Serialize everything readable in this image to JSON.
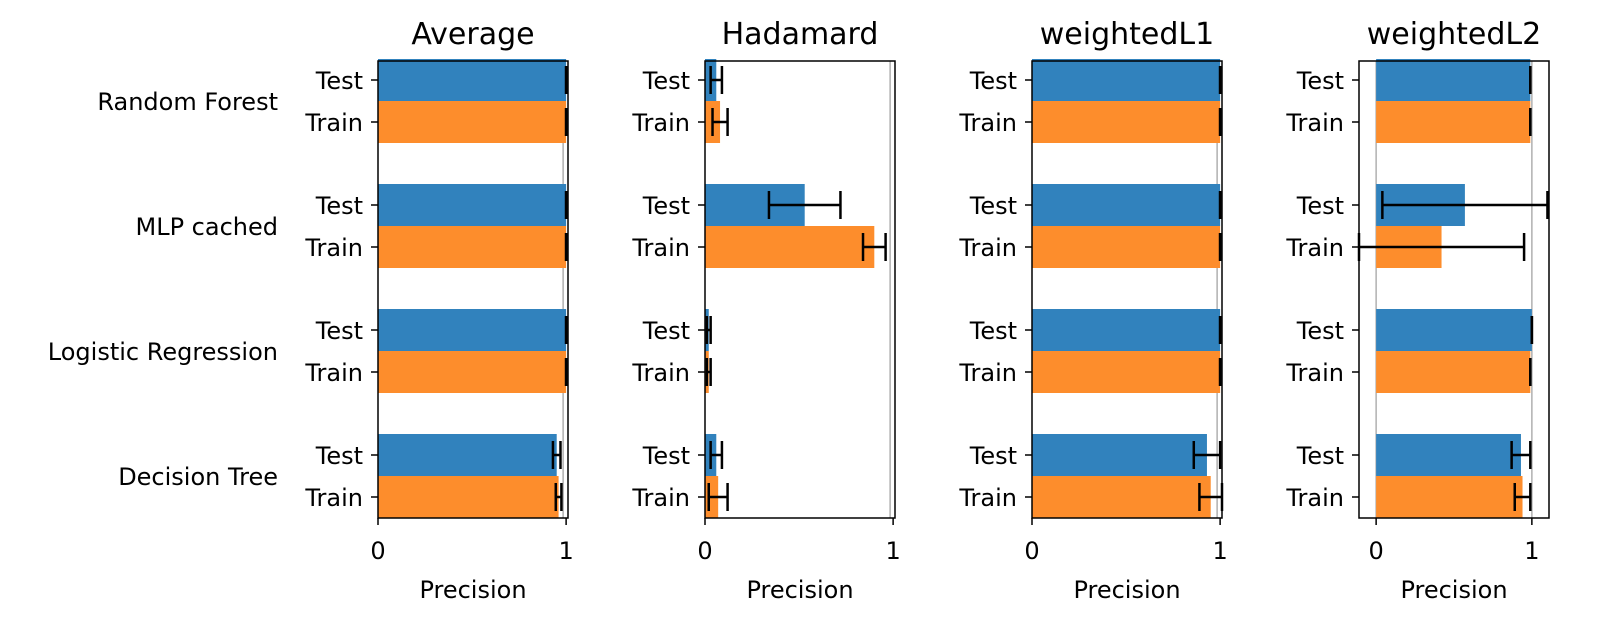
{
  "figure": {
    "row_labels": [
      "Random Forest",
      "MLP cached",
      "Logistic Regression",
      "Decision Tree"
    ],
    "xlabel": "Precision"
  },
  "colors": {
    "test": "#3182bd",
    "train": "#fd8d2c",
    "errorbar": "#000000",
    "refline": "#b0b0b0"
  },
  "chart_data": [
    {
      "type": "bar",
      "orientation": "horizontal",
      "title": "Average",
      "xlabel": "Precision",
      "xlim": [
        0,
        1.01
      ],
      "xticks": [
        "0",
        "1"
      ],
      "categories": [
        "Random Forest",
        "MLP cached",
        "Logistic Regression",
        "Decision Tree"
      ],
      "bar_labels": [
        "Test",
        "Train"
      ],
      "series": [
        {
          "label": "Test",
          "values": [
            1.0,
            1.0,
            1.0,
            0.95
          ],
          "err": [
            0.0,
            0.0,
            0.0,
            0.02
          ]
        },
        {
          "label": "Train",
          "values": [
            1.0,
            1.0,
            1.0,
            0.96
          ],
          "err": [
            0.0,
            0.0,
            0.0,
            0.015
          ]
        }
      ]
    },
    {
      "type": "bar",
      "orientation": "horizontal",
      "title": "Hadamard",
      "xlabel": "Precision",
      "xlim": [
        0,
        1.01
      ],
      "xticks": [
        "0",
        "1"
      ],
      "categories": [
        "Random Forest",
        "MLP cached",
        "Logistic Regression",
        "Decision Tree"
      ],
      "bar_labels": [
        "Test",
        "Train"
      ],
      "series": [
        {
          "label": "Test",
          "values": [
            0.06,
            0.53,
            0.02,
            0.06
          ],
          "err": [
            0.03,
            0.19,
            0.01,
            0.03
          ]
        },
        {
          "label": "Train",
          "values": [
            0.08,
            0.9,
            0.02,
            0.07
          ],
          "err": [
            0.04,
            0.06,
            0.01,
            0.05
          ]
        }
      ]
    },
    {
      "type": "bar",
      "orientation": "horizontal",
      "title": "weightedL1",
      "xlabel": "Precision",
      "xlim": [
        0,
        1.01
      ],
      "xticks": [
        "0",
        "1"
      ],
      "categories": [
        "Random Forest",
        "MLP cached",
        "Logistic Regression",
        "Decision Tree"
      ],
      "bar_labels": [
        "Test",
        "Train"
      ],
      "series": [
        {
          "label": "Test",
          "values": [
            1.0,
            1.0,
            1.0,
            0.93
          ],
          "err": [
            0.0,
            0.0,
            0.0,
            0.07
          ]
        },
        {
          "label": "Train",
          "values": [
            1.0,
            1.0,
            1.0,
            0.95
          ],
          "err": [
            0.0,
            0.0,
            0.0,
            0.06
          ]
        }
      ]
    },
    {
      "type": "bar",
      "orientation": "horizontal",
      "title": "weightedL2",
      "xlabel": "Precision",
      "xlim": [
        -0.11,
        1.11
      ],
      "xticks": [
        "0",
        "1"
      ],
      "categories": [
        "Random Forest",
        "MLP cached",
        "Logistic Regression",
        "Decision Tree"
      ],
      "bar_labels": [
        "Test",
        "Train"
      ],
      "series": [
        {
          "label": "Test",
          "values": [
            0.99,
            0.57,
            1.0,
            0.93
          ],
          "err": [
            0.0,
            0.53,
            0.0,
            0.06
          ]
        },
        {
          "label": "Train",
          "values": [
            0.99,
            0.42,
            0.99,
            0.94
          ],
          "err": [
            0.0,
            0.53,
            0.0,
            0.05
          ]
        }
      ]
    }
  ]
}
